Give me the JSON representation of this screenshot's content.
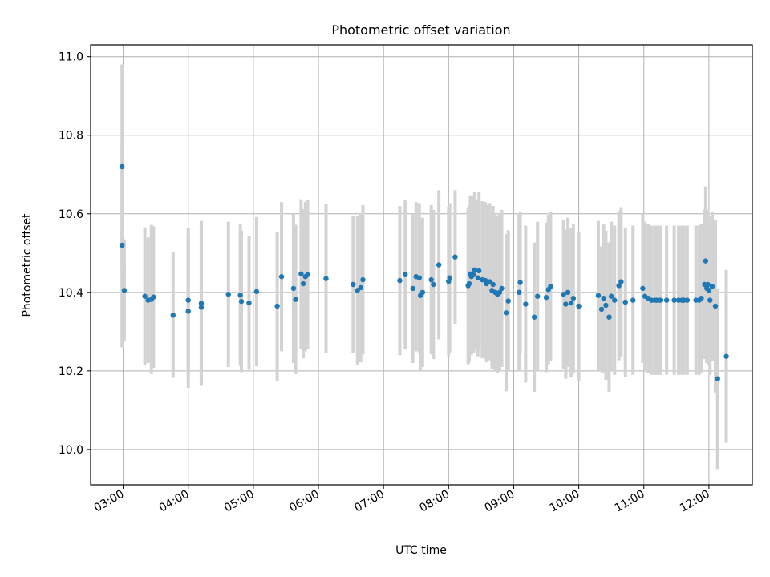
{
  "chart_data": {
    "type": "scatter",
    "title": "Photometric offset variation",
    "xlabel": "UTC time",
    "ylabel": "Photometric offset",
    "xlim": [
      "02:30",
      "12:40"
    ],
    "ylim": [
      9.91,
      11.03
    ],
    "x_ticks": [
      "03:00",
      "04:00",
      "05:00",
      "06:00",
      "07:00",
      "08:00",
      "09:00",
      "10:00",
      "11:00",
      "12:00"
    ],
    "y_ticks": [
      "10.0",
      "10.2",
      "10.4",
      "10.6",
      "10.8",
      "11.0"
    ],
    "grid": true,
    "colors": {
      "point": "#1f77b4",
      "errorbar": "#d3d3d3",
      "grid": "#b0b0b0"
    },
    "series": [
      {
        "x": [
          "02:59",
          "02:59",
          "03:01",
          "03:20",
          "03:23",
          "03:26",
          "03:28",
          "03:46",
          "04:00",
          "04:00",
          "04:12",
          "04:12",
          "04:37",
          "04:48",
          "04:49",
          "04:56",
          "05:03",
          "05:22",
          "05:26",
          "05:37",
          "05:39",
          "05:44",
          "05:46",
          "05:48",
          "05:50",
          "06:07",
          "06:32",
          "06:36",
          "06:39",
          "06:41",
          "07:15",
          "07:20",
          "07:27",
          "07:30",
          "07:33",
          "07:34",
          "07:36",
          "07:44",
          "07:46",
          "07:51",
          "08:00",
          "08:01",
          "08:06",
          "08:18",
          "08:19",
          "08:20",
          "08:21",
          "08:23",
          "08:24",
          "08:27",
          "08:28",
          "08:31",
          "08:34",
          "08:35",
          "08:38",
          "08:40",
          "08:41",
          "08:43",
          "08:45",
          "08:47",
          "08:49",
          "08:53",
          "08:55",
          "09:05",
          "09:06",
          "09:11",
          "09:19",
          "09:22",
          "09:30",
          "09:32",
          "09:34",
          "09:46",
          "09:48",
          "09:50",
          "09:53",
          "09:55",
          "10:00",
          "10:18",
          "10:21",
          "10:23",
          "10:25",
          "10:28",
          "10:30",
          "10:33",
          "10:37",
          "10:39",
          "10:43",
          "10:50",
          "10:59",
          "11:01",
          "11:04",
          "11:07",
          "11:10",
          "11:12",
          "11:15",
          "11:21",
          "11:28",
          "11:32",
          "11:35",
          "11:37",
          "11:40",
          "11:48",
          "11:51",
          "11:53",
          "11:56",
          "11:57",
          "11:58",
          "11:59",
          "12:00",
          "12:01",
          "12:03",
          "12:06",
          "12:08",
          "12:16"
        ],
        "y": [
          10.72,
          10.52,
          10.405,
          10.39,
          10.38,
          10.382,
          10.388,
          10.342,
          10.38,
          10.352,
          10.372,
          10.362,
          10.395,
          10.393,
          10.377,
          10.373,
          10.402,
          10.365,
          10.44,
          10.41,
          10.382,
          10.447,
          10.422,
          10.44,
          10.445,
          10.435,
          10.42,
          10.405,
          10.412,
          10.432,
          10.43,
          10.445,
          10.41,
          10.44,
          10.437,
          10.392,
          10.4,
          10.432,
          10.42,
          10.47,
          10.428,
          10.437,
          10.49,
          10.417,
          10.422,
          10.447,
          10.44,
          10.445,
          10.457,
          10.437,
          10.455,
          10.432,
          10.43,
          10.422,
          10.427,
          10.405,
          10.42,
          10.4,
          10.395,
          10.4,
          10.41,
          10.348,
          10.378,
          10.4,
          10.425,
          10.37,
          10.337,
          10.39,
          10.387,
          10.407,
          10.415,
          10.395,
          10.37,
          10.4,
          10.373,
          10.385,
          10.365,
          10.392,
          10.357,
          10.385,
          10.367,
          10.337,
          10.39,
          10.38,
          10.417,
          10.427,
          10.375,
          10.38,
          10.41,
          10.39,
          10.385,
          10.38,
          10.38,
          10.38,
          10.38,
          10.38,
          10.38,
          10.38,
          10.38,
          10.38,
          10.38,
          10.38,
          10.38,
          10.385,
          10.42,
          10.48,
          10.41,
          10.42,
          10.405,
          10.38,
          10.415,
          10.365,
          10.18,
          10.237
        ],
        "err": [
          0.26,
          0.26,
          0.13,
          0.175,
          0.16,
          0.19,
          0.18,
          0.16,
          0.185,
          0.195,
          0.21,
          0.2,
          0.185,
          0.18,
          0.18,
          0.17,
          0.19,
          0.19,
          0.19,
          0.19,
          0.19,
          0.19,
          0.19,
          0.19,
          0.19,
          0.19,
          0.175,
          0.19,
          0.19,
          0.19,
          0.19,
          0.19,
          0.19,
          0.19,
          0.19,
          0.19,
          0.19,
          0.19,
          0.19,
          0.19,
          0.19,
          0.19,
          0.17,
          0.2,
          0.2,
          0.2,
          0.2,
          0.2,
          0.2,
          0.2,
          0.2,
          0.2,
          0.2,
          0.2,
          0.2,
          0.2,
          0.2,
          0.2,
          0.2,
          0.2,
          0.2,
          0.2,
          0.18,
          0.2,
          0.18,
          0.2,
          0.19,
          0.19,
          0.19,
          0.19,
          0.19,
          0.19,
          0.19,
          0.19,
          0.19,
          0.19,
          0.19,
          0.19,
          0.16,
          0.19,
          0.19,
          0.19,
          0.19,
          0.19,
          0.19,
          0.19,
          0.19,
          0.19,
          0.19,
          0.19,
          0.19,
          0.19,
          0.19,
          0.19,
          0.19,
          0.19,
          0.19,
          0.19,
          0.19,
          0.19,
          0.19,
          0.19,
          0.19,
          0.19,
          0.19,
          0.19,
          0.19,
          0.19,
          0.19,
          0.19,
          0.19,
          0.22,
          0.23,
          0.22
        ]
      }
    ]
  }
}
